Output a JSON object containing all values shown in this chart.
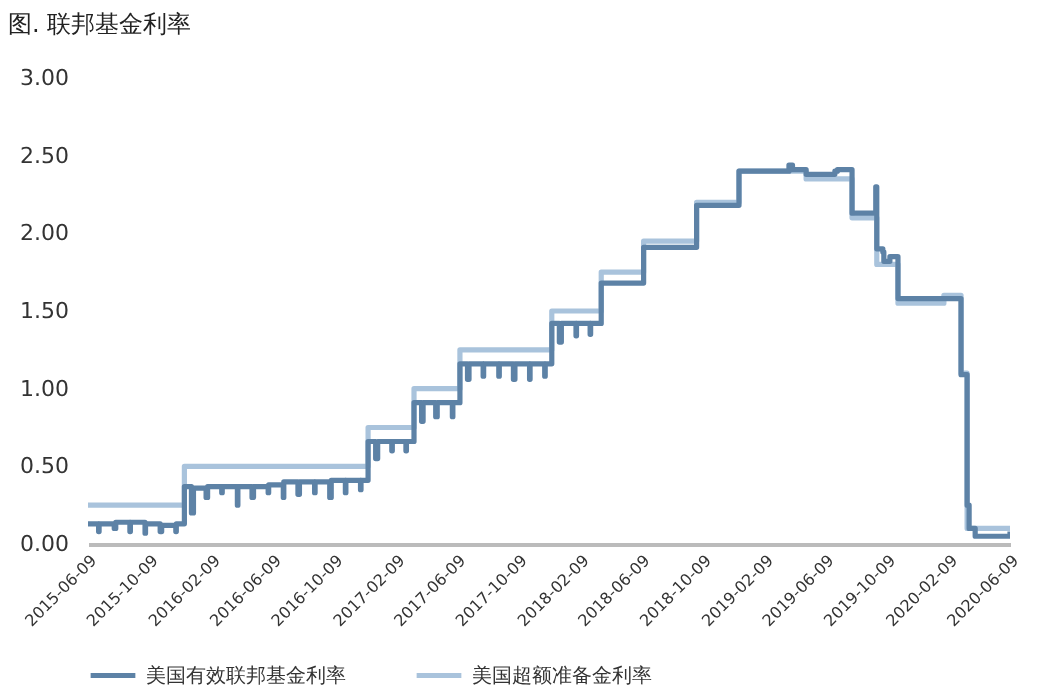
{
  "chart_data": {
    "type": "step",
    "title": "图. 联邦基金利率",
    "xlim": [
      "2015-06-09",
      "2020-06-09"
    ],
    "xticks": [
      "2015-06-09",
      "2015-10-09",
      "2016-02-09",
      "2016-06-09",
      "2016-10-09",
      "2017-02-09",
      "2017-06-09",
      "2017-10-09",
      "2018-02-09",
      "2018-06-09",
      "2018-10-09",
      "2019-02-09",
      "2019-06-09",
      "2019-10-09",
      "2020-02-09",
      "2020-06-09"
    ],
    "ylim": [
      0,
      3
    ],
    "yticks": [
      {
        "value": 0,
        "label": "0.00"
      },
      {
        "value": 0.5,
        "label": "0.50"
      },
      {
        "value": 1,
        "label": "1.00"
      },
      {
        "value": 1.5,
        "label": "1.50"
      },
      {
        "value": 2,
        "label": "2.00"
      },
      {
        "value": 2.5,
        "label": "2.50"
      },
      {
        "value": 3,
        "label": "3.00"
      }
    ],
    "grid": false,
    "legend": "bottom",
    "series": [
      {
        "name": "美国有效联邦基金利率",
        "color": "#5d82a6",
        "x": [
          "2015-06-09",
          "2015-06-30",
          "2015-07-01",
          "2015-07-31",
          "2015-08-03",
          "2015-08-31",
          "2015-09-01",
          "2015-09-30",
          "2015-10-01",
          "2015-10-30",
          "2015-11-02",
          "2015-11-30",
          "2015-12-01",
          "2015-12-17",
          "2015-12-31",
          "2016-01-04",
          "2016-01-29",
          "2016-02-01",
          "2016-02-29",
          "2016-03-01",
          "2016-03-31",
          "2016-04-01",
          "2016-04-29",
          "2016-05-02",
          "2016-05-31",
          "2016-06-01",
          "2016-06-30",
          "2016-07-01",
          "2016-07-29",
          "2016-08-01",
          "2016-08-31",
          "2016-09-01",
          "2016-09-30",
          "2016-10-03",
          "2016-10-31",
          "2016-11-01",
          "2016-11-30",
          "2016-12-01",
          "2016-12-15",
          "2016-12-30",
          "2017-01-03",
          "2017-01-31",
          "2017-02-01",
          "2017-02-28",
          "2017-03-01",
          "2017-03-16",
          "2017-03-31",
          "2017-04-03",
          "2017-04-28",
          "2017-05-01",
          "2017-05-31",
          "2017-06-01",
          "2017-06-15",
          "2017-06-30",
          "2017-07-03",
          "2017-07-31",
          "2017-08-01",
          "2017-08-31",
          "2017-09-01",
          "2017-09-29",
          "2017-10-02",
          "2017-10-31",
          "2017-11-01",
          "2017-11-30",
          "2017-12-01",
          "2017-12-14",
          "2017-12-29",
          "2018-01-02",
          "2018-01-31",
          "2018-02-01",
          "2018-02-28",
          "2018-03-01",
          "2018-03-22",
          "2018-06-14",
          "2018-09-27",
          "2018-12-20",
          "2019-03-29",
          "2019-04-05",
          "2019-05-02",
          "2019-06-28",
          "2019-07-03",
          "2019-08-01",
          "2019-09-17",
          "2019-09-19",
          "2019-10-01",
          "2019-10-03",
          "2019-10-15",
          "2019-10-31",
          "2020-01-30",
          "2020-03-04",
          "2020-03-16",
          "2020-03-20",
          "2020-04-01",
          "2020-06-09"
        ],
        "values": [
          0.13,
          0.08,
          0.13,
          0.1,
          0.14,
          0.08,
          0.14,
          0.07,
          0.13,
          0.08,
          0.12,
          0.08,
          0.13,
          0.37,
          0.2,
          0.36,
          0.3,
          0.37,
          0.33,
          0.37,
          0.25,
          0.37,
          0.3,
          0.37,
          0.33,
          0.38,
          0.3,
          0.4,
          0.32,
          0.4,
          0.33,
          0.4,
          0.3,
          0.41,
          0.33,
          0.41,
          0.35,
          0.41,
          0.66,
          0.55,
          0.66,
          0.6,
          0.66,
          0.6,
          0.66,
          0.91,
          0.79,
          0.91,
          0.82,
          0.91,
          0.82,
          0.91,
          1.16,
          1.06,
          1.16,
          1.08,
          1.16,
          1.08,
          1.16,
          1.06,
          1.16,
          1.06,
          1.16,
          1.08,
          1.16,
          1.42,
          1.3,
          1.42,
          1.34,
          1.42,
          1.35,
          1.42,
          1.68,
          1.91,
          2.18,
          2.4,
          2.44,
          2.41,
          2.38,
          2.4,
          2.41,
          2.13,
          2.3,
          1.9,
          1.88,
          1.82,
          1.85,
          1.58,
          1.58,
          1.09,
          0.25,
          0.1,
          0.05,
          0.08
        ]
      },
      {
        "name": "美国超额准备金利率",
        "color": "#a9c3dc",
        "x": [
          "2015-06-09",
          "2015-12-17",
          "2016-12-15",
          "2017-03-16",
          "2017-06-15",
          "2017-12-14",
          "2018-03-22",
          "2018-06-14",
          "2018-09-27",
          "2018-12-20",
          "2019-05-02",
          "2019-08-01",
          "2019-09-19",
          "2019-10-31",
          "2020-01-30",
          "2020-03-04",
          "2020-03-16",
          "2020-06-09"
        ],
        "values": [
          0.25,
          0.5,
          0.75,
          1.0,
          1.25,
          1.5,
          1.75,
          1.95,
          2.2,
          2.4,
          2.35,
          2.1,
          1.8,
          1.55,
          1.6,
          1.1,
          0.1,
          0.1
        ]
      }
    ]
  }
}
